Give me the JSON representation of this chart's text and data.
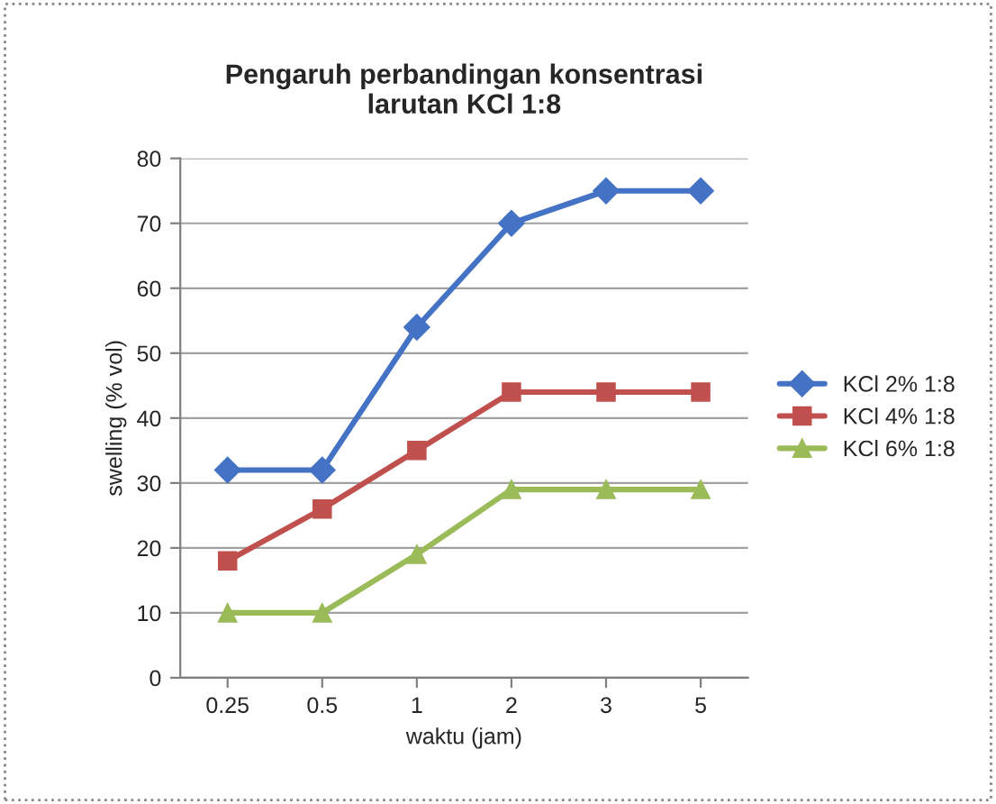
{
  "chart_data": {
    "type": "line",
    "title": "Pengaruh perbandingan konsentrasi\nlarutan KCl 1:8",
    "xlabel": "waktu (jam)",
    "ylabel": "swelling (% vol)",
    "categories": [
      "0.25",
      "0.5",
      "1",
      "2",
      "3",
      "5"
    ],
    "series": [
      {
        "name": "KCl 2% 1:8",
        "color": "#4472c4",
        "marker": "diamond",
        "values": [
          32,
          32,
          54,
          70,
          75,
          75
        ]
      },
      {
        "name": "KCl 4% 1:8",
        "color": "#c0504d",
        "marker": "square",
        "values": [
          18,
          26,
          35,
          44,
          44,
          44
        ]
      },
      {
        "name": "KCl 6% 1:8",
        "color": "#9bbb59",
        "marker": "triangle",
        "values": [
          10,
          10,
          19,
          29,
          29,
          29
        ]
      }
    ],
    "ylim": [
      0,
      80
    ],
    "yticks": [
      0,
      10,
      20,
      30,
      40,
      50,
      60,
      70,
      80
    ],
    "grid": "y",
    "legend": "right"
  }
}
